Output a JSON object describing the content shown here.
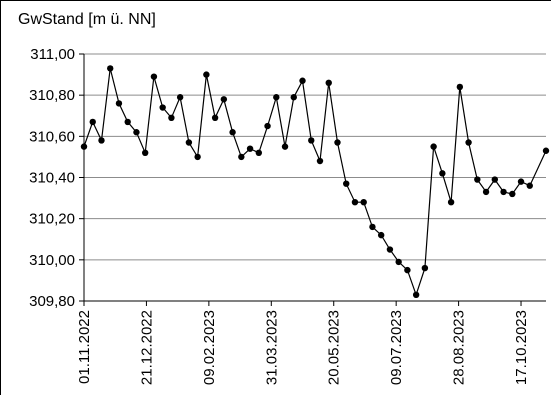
{
  "chart_data": {
    "type": "line",
    "ylabel": "GwStand [m ü. NN]",
    "ylim": [
      309.8,
      311.0
    ],
    "yticks": [
      309.8,
      310.0,
      310.2,
      310.4,
      310.6,
      310.8,
      311.0
    ],
    "ytick_labels": [
      "309,80",
      "310,00",
      "310,20",
      "310,40",
      "310,60",
      "310,80",
      "311,00"
    ],
    "xlim": [
      "2022-11-01",
      "2023-11-06"
    ],
    "xticks": [
      "2022-11-01",
      "2022-12-21",
      "2023-02-09",
      "2023-03-31",
      "2023-05-20",
      "2023-07-09",
      "2023-08-28",
      "2023-10-17"
    ],
    "xtick_labels": [
      "01.11.2022",
      "21.12.2022",
      "09.02.2023",
      "31.03.2023",
      "20.05.2023",
      "09.07.2023",
      "28.08.2023",
      "17.10.2023"
    ],
    "grid": "horizontal",
    "legend": "none",
    "line_color": "#000000",
    "marker": "filled-circle",
    "series": [
      {
        "x": [
          "2022-11-01",
          "2022-11-08",
          "2022-11-15",
          "2022-11-22",
          "2022-11-29",
          "2022-12-06",
          "2022-12-13",
          "2022-12-20",
          "2022-12-27",
          "2023-01-03",
          "2023-01-10",
          "2023-01-17",
          "2023-01-24",
          "2023-01-31",
          "2023-02-07",
          "2023-02-14",
          "2023-02-21",
          "2023-02-28",
          "2023-03-07",
          "2023-03-14",
          "2023-03-21",
          "2023-03-28",
          "2023-04-04",
          "2023-04-11",
          "2023-04-18",
          "2023-04-25",
          "2023-05-02",
          "2023-05-09",
          "2023-05-16",
          "2023-05-23",
          "2023-05-30",
          "2023-06-06",
          "2023-06-13",
          "2023-06-20",
          "2023-06-27",
          "2023-07-04",
          "2023-07-11",
          "2023-07-18",
          "2023-07-25",
          "2023-08-01",
          "2023-08-08",
          "2023-08-15",
          "2023-08-22",
          "2023-08-29",
          "2023-09-05",
          "2023-09-12",
          "2023-09-19",
          "2023-09-26",
          "2023-10-03",
          "2023-10-10",
          "2023-10-17",
          "2023-10-24",
          "2023-11-06"
        ],
        "y": [
          310.55,
          310.67,
          310.58,
          310.93,
          310.76,
          310.67,
          310.62,
          310.52,
          310.89,
          310.74,
          310.69,
          310.79,
          310.57,
          310.5,
          310.9,
          310.69,
          310.78,
          310.62,
          310.5,
          310.54,
          310.52,
          310.65,
          310.79,
          310.55,
          310.79,
          310.87,
          310.58,
          310.48,
          310.86,
          310.57,
          310.37,
          310.28,
          310.28,
          310.16,
          310.12,
          310.05,
          309.99,
          309.95,
          309.83,
          309.96,
          310.55,
          310.42,
          310.28,
          310.84,
          310.57,
          310.39,
          310.33,
          310.39,
          310.33,
          310.32,
          310.38,
          310.36,
          310.53
        ]
      }
    ]
  }
}
